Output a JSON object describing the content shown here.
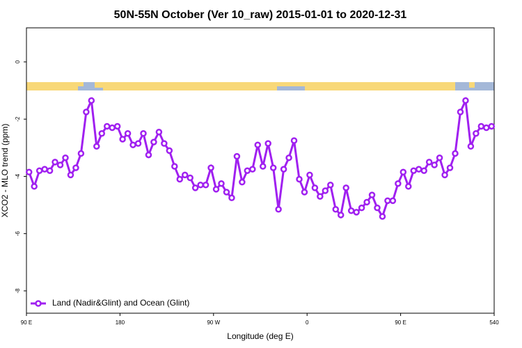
{
  "chart_data": {
    "type": "line",
    "title": "50N-55N October (Ver 10_raw)   2015-01-01 to 2020-12-31",
    "x_label": "Longitude (deg E)",
    "y_label": "XCO2 - MLO trend (ppm)",
    "x": [
      92.5,
      97.5,
      102.5,
      107.5,
      112.5,
      117.5,
      122.5,
      127.5,
      132.5,
      137.5,
      142.5,
      147.5,
      152.5,
      157.5,
      162.5,
      167.5,
      172.5,
      177.5,
      182.5,
      187.5,
      192.5,
      197.5,
      202.5,
      207.5,
      212.5,
      217.5,
      222.5,
      227.5,
      232.5,
      237.5,
      242.5,
      247.5,
      252.5,
      257.5,
      262.5,
      267.5,
      272.5,
      277.5,
      282.5,
      287.5,
      292.5,
      297.5,
      302.5,
      307.5,
      312.5,
      317.5,
      322.5,
      327.5,
      332.5,
      337.5,
      342.5,
      347.5,
      352.5,
      357.5,
      362.5,
      367.5,
      372.5,
      377.5,
      382.5,
      387.5,
      392.5,
      397.5,
      402.5,
      407.5,
      412.5,
      417.5,
      422.5,
      427.5,
      432.5,
      437.5,
      442.5,
      447.5,
      452.5,
      457.5,
      462.5,
      467.5,
      472.5,
      477.5,
      482.5,
      487.5,
      492.5,
      497.5,
      502.5,
      507.5,
      512.5,
      517.5,
      522.5,
      527.5,
      532.5,
      537.5
    ],
    "series": [
      {
        "name": "Land (Nadir&Glint) and Ocean (Glint)",
        "color": "#a020f0",
        "values": [
          -3.85,
          -4.35,
          -3.8,
          -3.75,
          -3.8,
          -3.5,
          -3.6,
          -3.35,
          -3.95,
          -3.7,
          -3.2,
          -1.75,
          -1.35,
          -2.95,
          -2.5,
          -2.25,
          -2.3,
          -2.25,
          -2.7,
          -2.5,
          -2.9,
          -2.85,
          -2.5,
          -3.25,
          -2.8,
          -2.45,
          -2.85,
          -3.1,
          -3.65,
          -4.1,
          -3.95,
          -4.05,
          -4.4,
          -4.3,
          -4.3,
          -3.7,
          -4.45,
          -4.25,
          -4.55,
          -4.75,
          -3.3,
          -4.2,
          -3.8,
          -3.75,
          -2.9,
          -3.65,
          -2.85,
          -3.7,
          -5.15,
          -3.75,
          -3.35,
          -2.75,
          -4.1,
          -4.55,
          -3.95,
          -4.4,
          -4.7,
          -4.5,
          -4.3,
          -5.15,
          -5.35,
          -4.4,
          -5.2,
          -5.25,
          -5.1,
          -4.9,
          -4.65,
          -5.1,
          -5.4,
          -4.85,
          -4.85,
          -4.25,
          -3.85,
          -4.35,
          -3.8,
          -3.75,
          -3.8,
          -3.5,
          -3.6,
          -3.35,
          -3.95,
          -3.7,
          -3.2,
          -1.75,
          -1.35,
          -2.95,
          -2.5,
          -2.25,
          -2.3,
          -2.25
        ]
      }
    ],
    "xlim": [
      90,
      540
    ],
    "xticks": [
      {
        "value": 90,
        "label": "90 E"
      },
      180,
      {
        "value": 270,
        "label": "90 W"
      },
      {
        "value": 360,
        "label": "0"
      },
      {
        "value": 450,
        "label": "90 E"
      },
      540
    ],
    "ylim": [
      -8.78,
      1.19
    ],
    "yticks": [
      -8,
      -6,
      -4,
      -2,
      0
    ],
    "legend": "bottom-left"
  }
}
